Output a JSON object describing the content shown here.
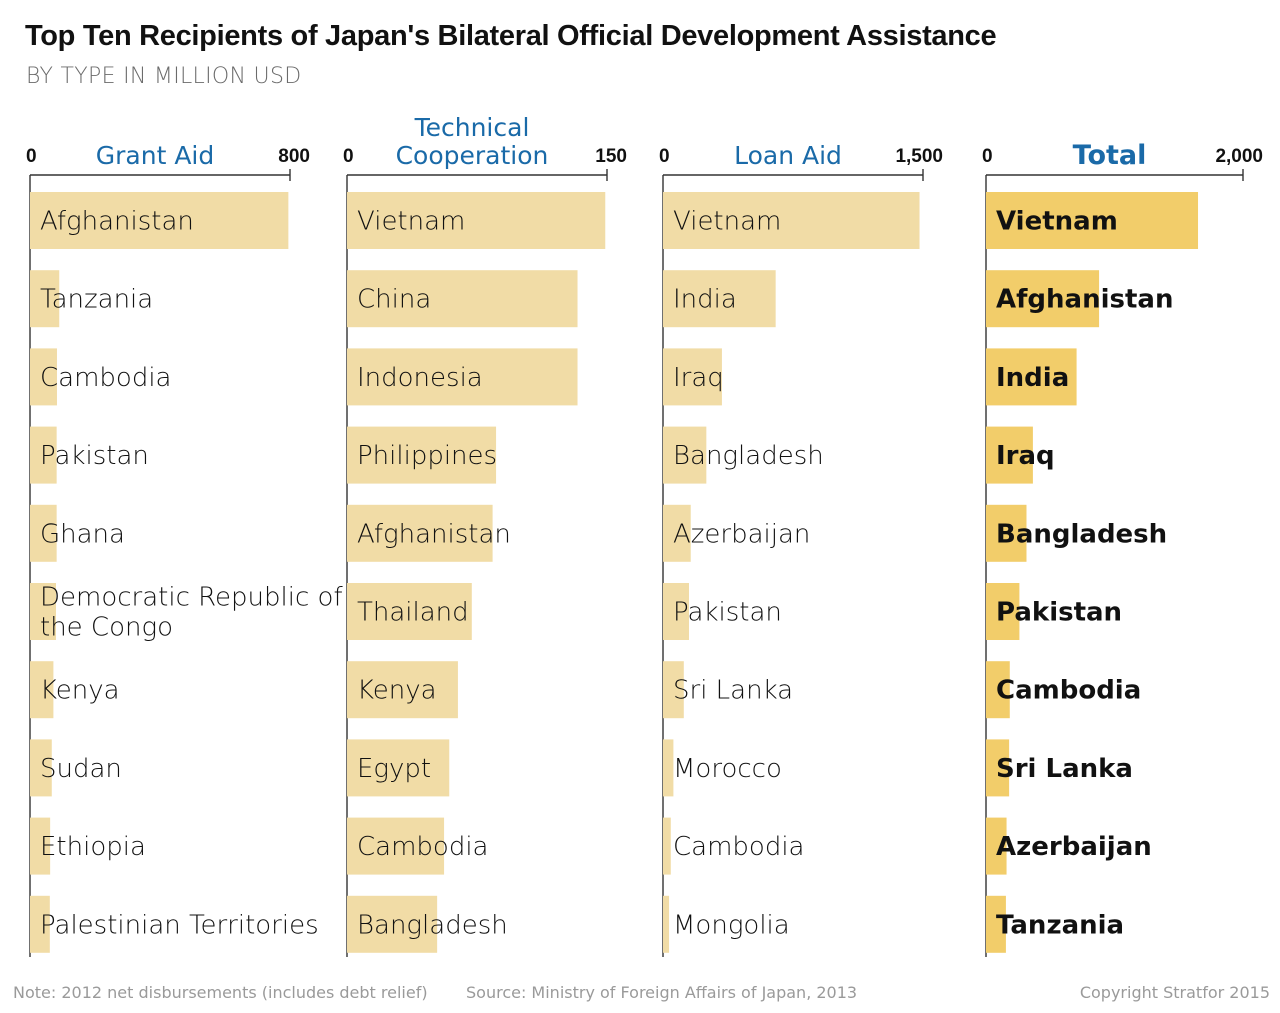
{
  "title": "Top Ten Recipients of Japan's Bilateral Official Development Assistance",
  "subtitle": "BY TYPE IN MILLION USD",
  "chart_data": [
    {
      "type": "bar",
      "orientation": "horizontal",
      "title_lines": [
        "Grant Aid"
      ],
      "axis_min": 0,
      "axis_max": 800,
      "tick_labels": [
        "0",
        "800"
      ],
      "categories": [
        "Afghanistan",
        "Tanzania",
        "Cambodia",
        "Pakistan",
        "Ghana",
        "Democratic Republic of the Congo",
        "Kenya",
        "Sudan",
        "Ethiopia",
        "Palestinian Territories"
      ],
      "values": [
        795,
        90,
        83,
        82,
        82,
        80,
        72,
        67,
        62,
        61
      ],
      "bar_color": "#f1dca6"
    },
    {
      "type": "bar",
      "orientation": "horizontal",
      "title_lines": [
        "Technical",
        "Cooperation"
      ],
      "axis_min": 0,
      "axis_max": 150,
      "tick_labels": [
        "0",
        "150"
      ],
      "categories": [
        "Vietnam",
        "China",
        "Indonesia",
        "Philippines",
        "Afghanistan",
        "Thailand",
        "Kenya",
        "Egypt",
        "Cambodia",
        "Bangladesh"
      ],
      "values": [
        149,
        133,
        133,
        86,
        84,
        72,
        64,
        59,
        56,
        52
      ],
      "bar_color": "#f1dca6"
    },
    {
      "type": "bar",
      "orientation": "horizontal",
      "title_lines": [
        "Loan Aid"
      ],
      "axis_min": 0,
      "axis_max": 1500,
      "tick_labels": [
        "0",
        "1,500"
      ],
      "categories": [
        "Vietnam",
        "India",
        "Iraq",
        "Bangladesh",
        "Azerbaijan",
        "Pakistan",
        "Sri Lanka",
        "Morocco",
        "Cambodia",
        "Mongolia"
      ],
      "values": [
        1480,
        650,
        340,
        250,
        160,
        150,
        120,
        60,
        45,
        35
      ],
      "bar_color": "#f1dca6"
    },
    {
      "type": "bar",
      "orientation": "horizontal",
      "title_lines": [
        "Total"
      ],
      "axis_min": 0,
      "axis_max": 2000,
      "tick_labels": [
        "0",
        "2,000"
      ],
      "categories": [
        "Vietnam",
        "Afghanistan",
        "India",
        "Iraq",
        "Bangladesh",
        "Pakistan",
        "Cambodia",
        "Sri Lanka",
        "Azerbaijan",
        "Tanzania"
      ],
      "values": [
        1650,
        880,
        705,
        365,
        315,
        260,
        185,
        180,
        160,
        155
      ],
      "bar_color": "#f2cd6a",
      "emphasis": true
    }
  ],
  "footer": {
    "note": "Note: 2012 net disbursements (includes debt relief)",
    "source": "Source: Ministry of Foreign Affairs of Japan, 2013",
    "copyright": "Copyright Stratfor 2015"
  },
  "colors": {
    "title_blue": "#1a6aa8",
    "bar_light": "#f1dca6",
    "bar_total": "#f2cd6a",
    "axis": "#333333",
    "text_dark": "#111111",
    "footer_gray": "#9a9a9a"
  }
}
